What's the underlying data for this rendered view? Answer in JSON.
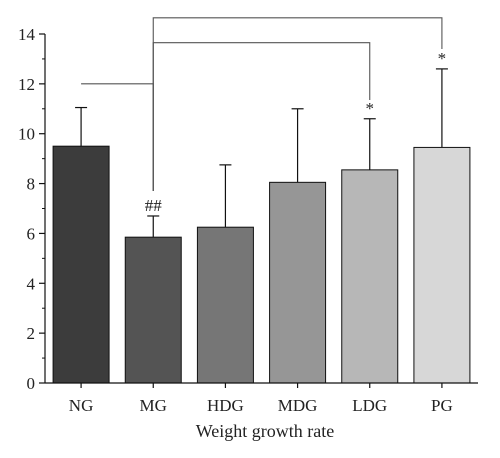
{
  "chart_data": {
    "type": "bar",
    "categories": [
      "NG",
      "MG",
      "HDG",
      "MDG",
      "LDG",
      "PG"
    ],
    "values": [
      9.5,
      5.85,
      6.25,
      8.05,
      8.55,
      9.45
    ],
    "error_upper": [
      11.05,
      6.7,
      8.75,
      11.0,
      10.6,
      12.6
    ],
    "bar_colors": [
      "#3c3c3c",
      "#545454",
      "#767676",
      "#969696",
      "#b7b7b7",
      "#d7d7d7"
    ],
    "xlabel": "Weight growth rate",
    "ylabel": "",
    "ylim": [
      0,
      14
    ],
    "yticks": [
      0,
      2,
      4,
      6,
      8,
      10,
      12,
      14
    ],
    "grid": false,
    "annotations": [
      {
        "category": "MG",
        "text": "##"
      },
      {
        "category": "LDG",
        "text": "*"
      },
      {
        "category": "PG",
        "text": "*"
      }
    ],
    "brackets": [
      {
        "from": "NG",
        "to": "MG",
        "from_level": 12.0,
        "top": 12.0,
        "to_level": 7.7
      },
      {
        "from": "MG",
        "to": "LDG",
        "from_level": 7.7,
        "top": 13.65,
        "to_level": 11.35
      },
      {
        "from": "MG",
        "to": "PG",
        "from_level": 7.7,
        "top": 14.65,
        "to_level": 13.4
      }
    ]
  }
}
